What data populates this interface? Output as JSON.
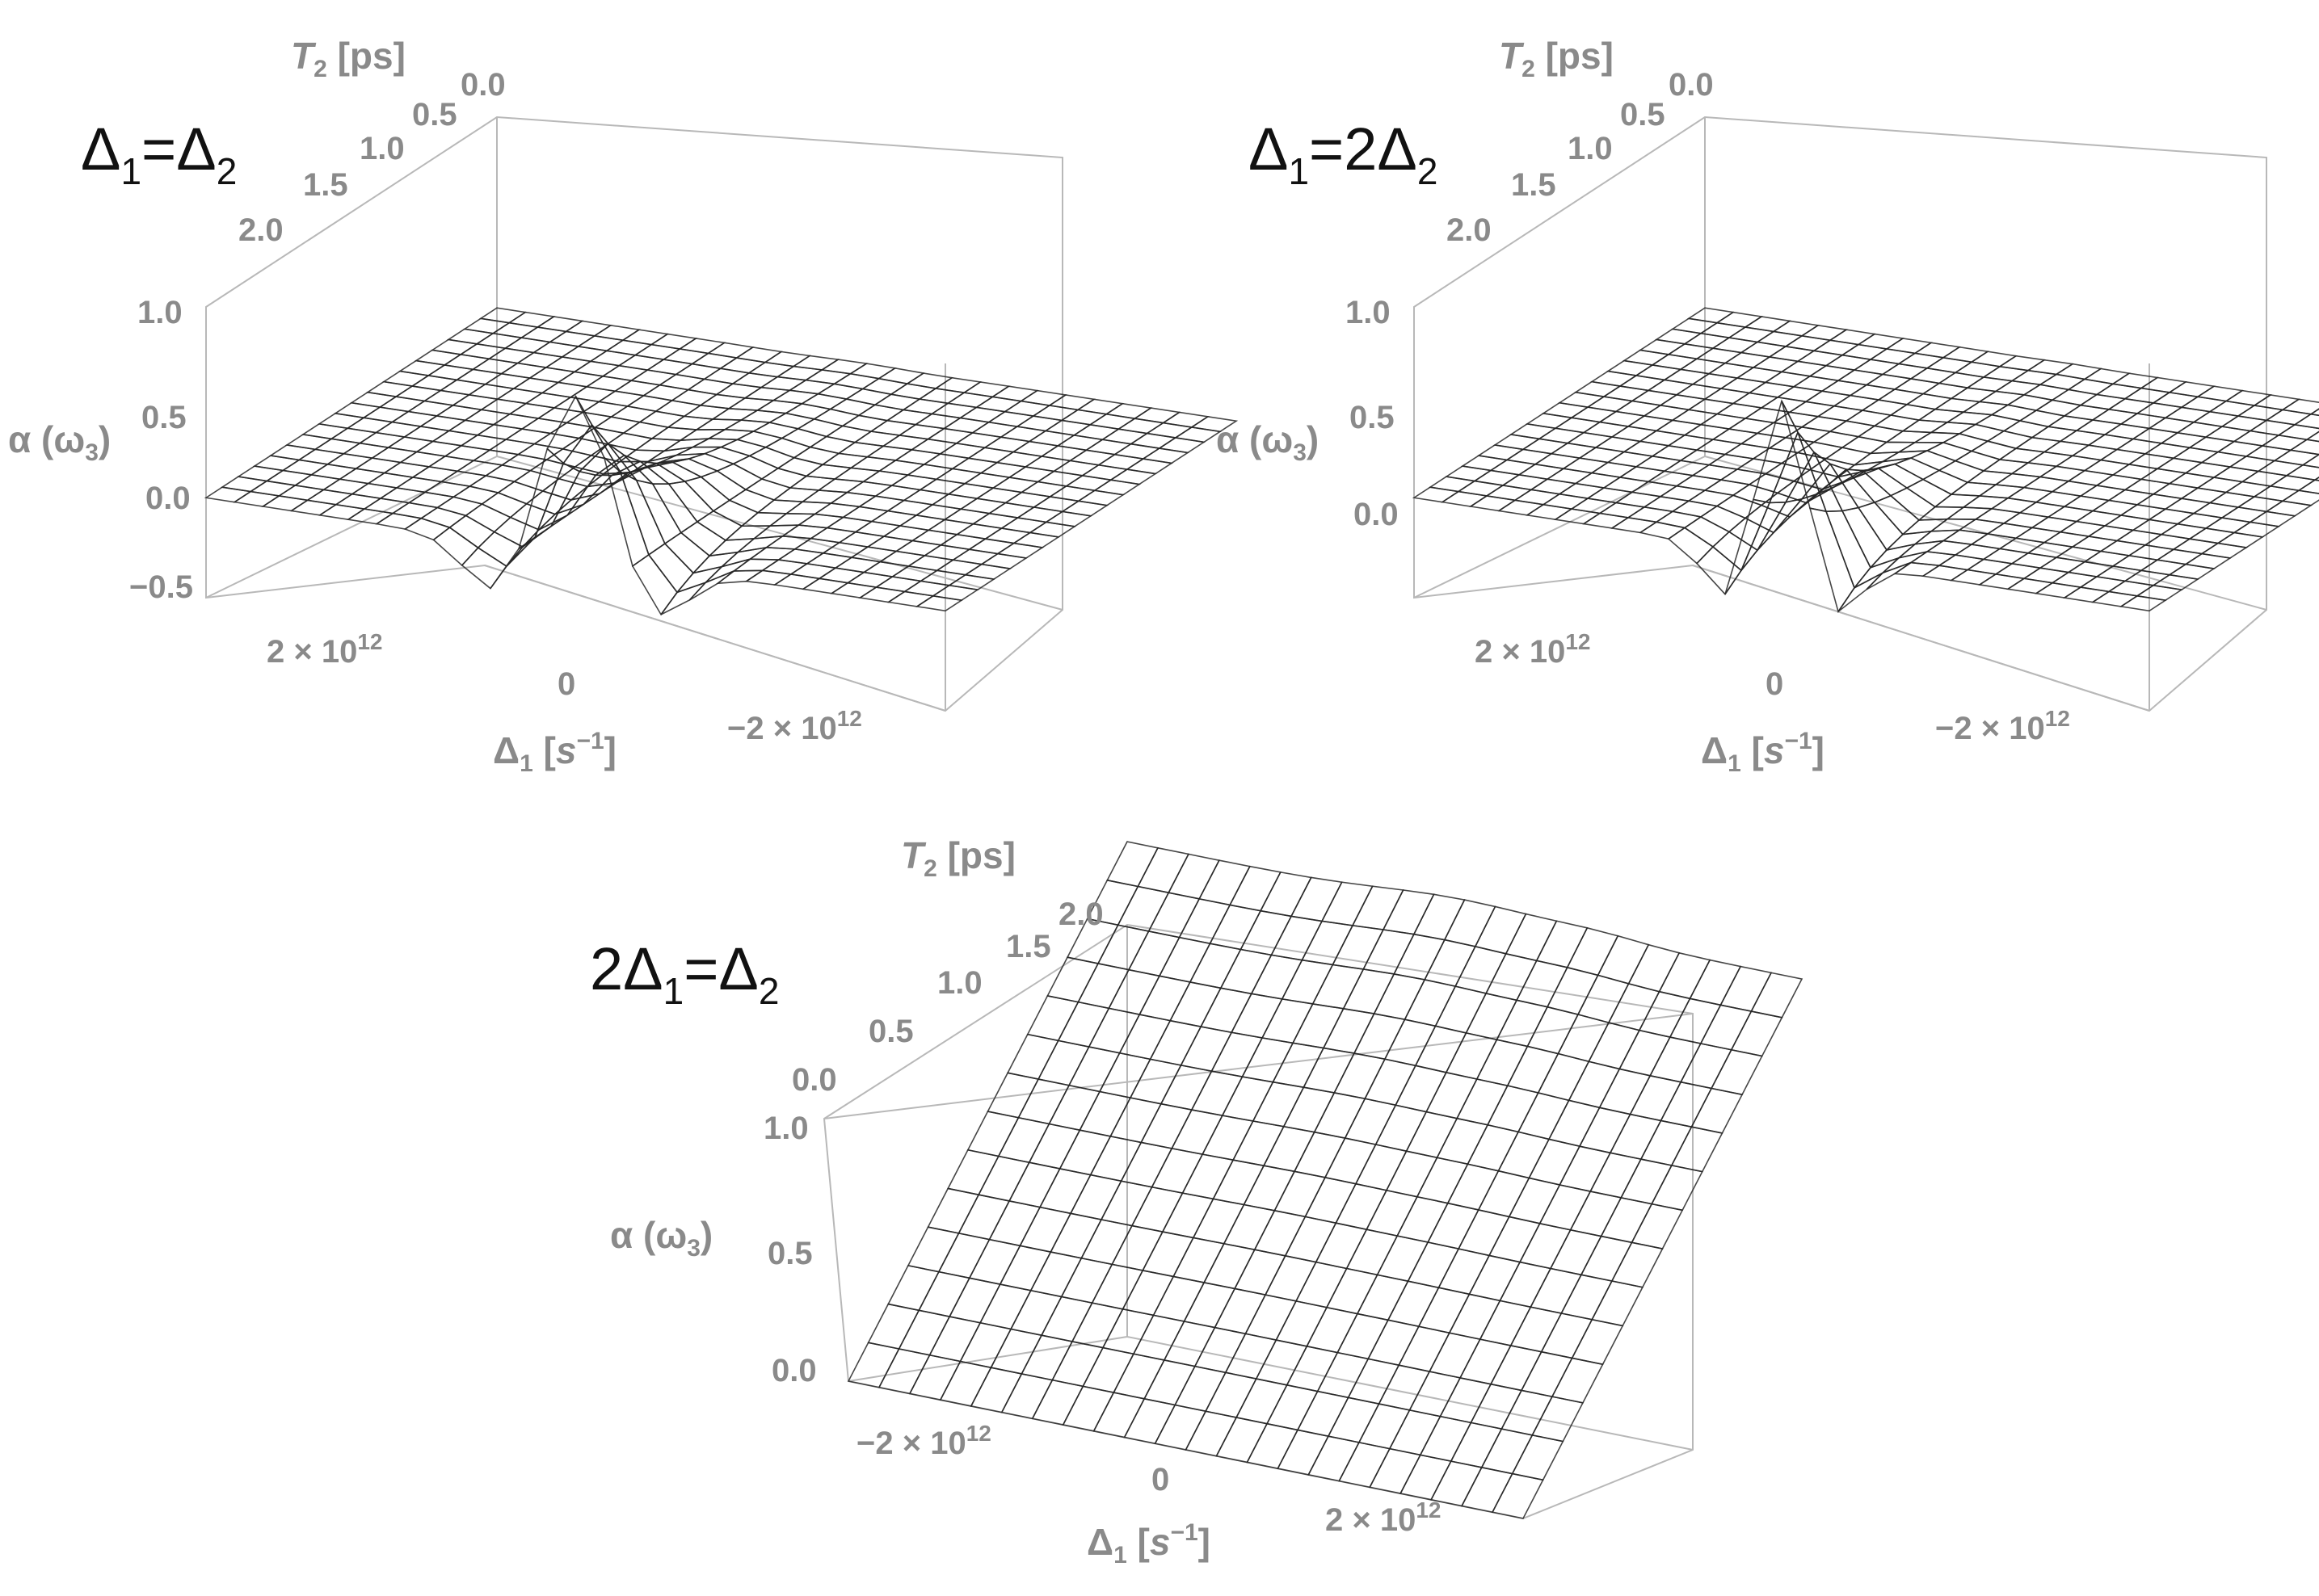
{
  "chart_data": [
    {
      "type": "surface3d",
      "condition": "Δ1=Δ2",
      "x_axis": {
        "label": "Δ1 [s⁻¹]",
        "ticks": [
          "2×10¹²",
          "0",
          "−2×10¹²"
        ],
        "range": [
          3000000000000.0,
          -3000000000000.0
        ]
      },
      "y_axis": {
        "label": "T2 [ps]",
        "ticks": [
          "0.0",
          "0.5",
          "1.0",
          "1.5",
          "2.0"
        ],
        "range": [
          0,
          2.3
        ]
      },
      "z_axis": {
        "label": "α (ω3)",
        "ticks": [
          "1.0",
          "0.5",
          "0.0",
          "−0.5"
        ],
        "range": [
          -0.55,
          1.05
        ]
      },
      "surface_samples": {
        "x_Delta1": [
          -3000000000000.0,
          -1500000000000.0,
          -600000000000.0,
          0,
          600000000000.0,
          1500000000000.0,
          3000000000000.0
        ],
        "alpha_at_T2_0": [
          0.0,
          -0.05,
          -0.45,
          1.0,
          -0.45,
          -0.05,
          0.0
        ],
        "alpha_far_field": 0.0
      },
      "colormap": [
        "#3a5fcd",
        "#3f7f4f",
        "#d8d84a",
        "#e02020"
      ]
    },
    {
      "type": "surface3d",
      "condition": "Δ1=2Δ2",
      "x_axis": {
        "label": "Δ1 [s⁻¹]",
        "ticks": [
          "2×10¹²",
          "0",
          "−2×10¹²"
        ],
        "range": [
          3000000000000.0,
          -3000000000000.0
        ]
      },
      "y_axis": {
        "label": "T2 [ps]",
        "ticks": [
          "0.0",
          "0.5",
          "1.0",
          "1.5",
          "2.0"
        ],
        "range": [
          0,
          2.3
        ]
      },
      "z_axis": {
        "label": "α (ω3)",
        "ticks": [
          "1.0",
          "0.5",
          "0.0"
        ],
        "range": [
          -0.55,
          1.05
        ]
      },
      "surface_samples": {
        "x_Delta1": [
          -3000000000000.0,
          -1500000000000.0,
          -400000000000.0,
          0,
          400000000000.0,
          1500000000000.0,
          3000000000000.0
        ],
        "alpha_at_T2_0": [
          0.0,
          -0.05,
          -0.5,
          1.0,
          -0.5,
          -0.05,
          0.0
        ],
        "alpha_far_field": 0.0
      },
      "colormap": [
        "#3a5fcd",
        "#3f7f4f",
        "#d8d84a",
        "#e02020"
      ]
    },
    {
      "type": "surface3d",
      "condition": "2Δ1=Δ2",
      "x_axis": {
        "label": "Δ1 [s⁻¹]",
        "ticks": [
          "−2×10¹²",
          "0",
          "2×10¹²"
        ],
        "range": [
          -3000000000000.0,
          3000000000000.0
        ]
      },
      "y_axis": {
        "label": "T2 [ps]",
        "ticks": [
          "0.0",
          "0.5",
          "1.0",
          "1.5",
          "2.0"
        ],
        "range": [
          0,
          2.0
        ]
      },
      "z_axis": {
        "label": "α (ω3)",
        "ticks": [
          "1.0",
          "0.5",
          "0.0"
        ],
        "range": [
          0,
          1.05
        ]
      },
      "surface_samples": {
        "T2_ps": [
          0.0,
          0.5,
          1.0,
          1.5,
          2.0
        ],
        "alpha_at_Delta1_0": [
          0.0,
          0.3,
          0.6,
          0.85,
          1.05
        ],
        "alpha_far_field_at_T2_2": 0.95
      },
      "colormap": [
        "#3a5fcd",
        "#3f7f4f",
        "#d8d84a",
        "#e02020"
      ]
    }
  ]
}
